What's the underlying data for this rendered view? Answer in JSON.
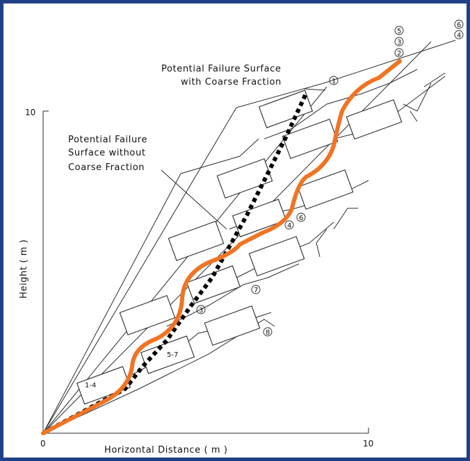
{
  "labels": {
    "with_coarse": [
      "Potential Failure Surface",
      "with Coarse Fraction"
    ],
    "without_coarse": [
      "Potential Failure",
      "Surface without",
      "Coarse Fraction"
    ]
  },
  "axes": {
    "x_label": "Horizontal  Distance  ( m )",
    "y_label": "Height ( m )",
    "x_ticks": [
      "0",
      "10"
    ],
    "y_ticks": [
      "10"
    ]
  },
  "markers": {
    "m1": "1",
    "m2": "2",
    "m3": "3",
    "m5": "5",
    "m4_top": "4",
    "m6_top": "6",
    "m1_4": "1-4",
    "m3_low": "3",
    "m5_7": "5-7",
    "m4_mid": "4",
    "m6_mid": "6",
    "m7": "7",
    "m8": "8"
  },
  "colors": {
    "frame": "#1f3f86",
    "failure_with_coarse": "#f07423",
    "failure_without_coarse": "#000000"
  }
}
